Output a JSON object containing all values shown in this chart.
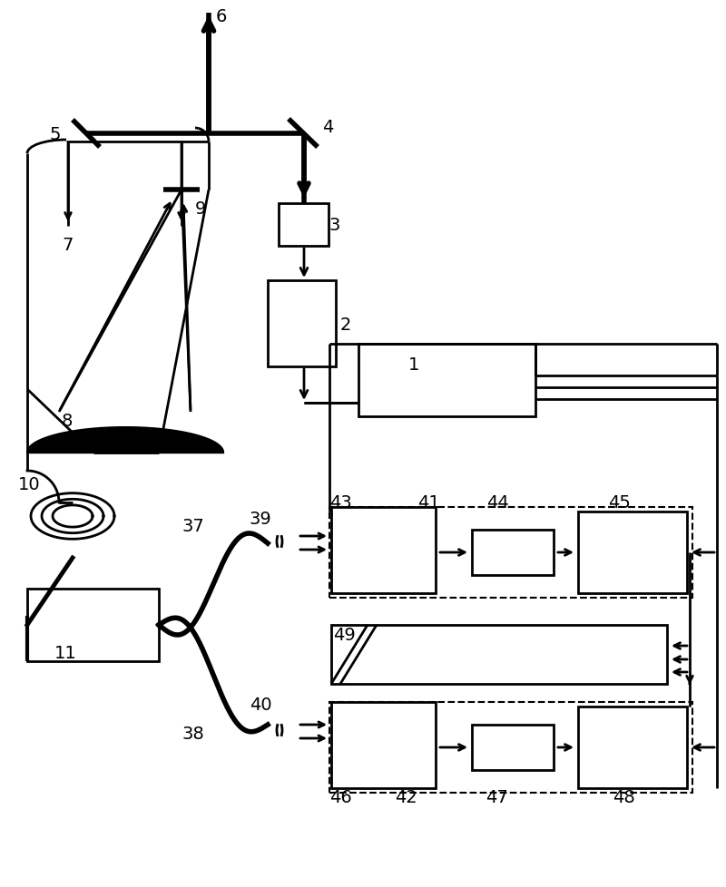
{
  "fig_width": 8.0,
  "fig_height": 9.79,
  "bg_color": "#ffffff",
  "lw": 2.0,
  "lw_thick": 4.0,
  "fontsize": 14
}
